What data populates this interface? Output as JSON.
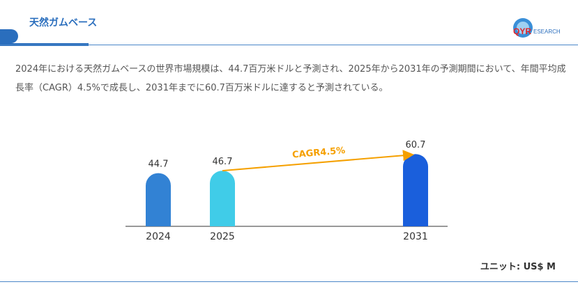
{
  "header": {
    "title": "天然ガムベース",
    "logo_text": "QYRESEARCH"
  },
  "description": "2024年における天然ガムベースの世界市場規模は、44.7百万米ドルと予測され、2025年から2031年の予測期間において、年間平均成長率（CAGR）4.5%で成長し、2031年までに60.7百万米ドルに達すると予測されている。",
  "unit_label": "ユニット: US$ M",
  "chart_data": {
    "type": "bar",
    "categories": [
      "2024",
      "2025",
      "2031"
    ],
    "values": [
      44.7,
      46.7,
      60.7
    ],
    "colors": [
      "#3282d4",
      "#40cce8",
      "#1a5fdc"
    ],
    "annotation": {
      "text": "CAGR4.5%",
      "from": "2025",
      "to": "2031",
      "color": "#f5a000"
    },
    "grid": false
  }
}
